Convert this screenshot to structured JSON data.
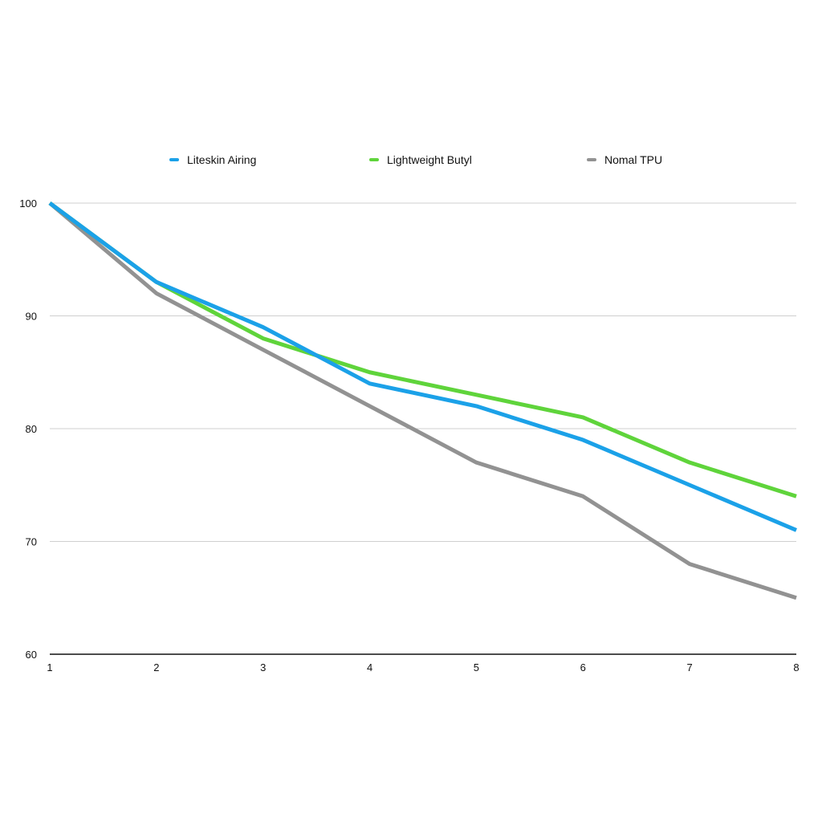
{
  "colors": {
    "series_1": "#1ba1e8",
    "series_2": "#5fd43b",
    "series_3": "#929292",
    "gridline": "#cfcfcf",
    "axis": "#111111"
  },
  "chart_data": {
    "type": "line",
    "title": "",
    "xlabel": "",
    "ylabel": "",
    "x": [
      1,
      2,
      3,
      4,
      5,
      6,
      7,
      8
    ],
    "x_tick_labels": [
      "1",
      "2",
      "3",
      "4",
      "5",
      "6",
      "7",
      "8"
    ],
    "y_tick_labels": [
      "60",
      "70",
      "80",
      "90",
      "100"
    ],
    "y_ticks": [
      60,
      70,
      80,
      90,
      100
    ],
    "ylim": [
      60,
      100
    ],
    "xlim": [
      1,
      8
    ],
    "grid": "horizontal",
    "legend_position": "top",
    "series": [
      {
        "name": "Liteskin Airing",
        "color": "#1ba1e8",
        "values": [
          100,
          93,
          89,
          84,
          82,
          79,
          75,
          71
        ]
      },
      {
        "name": "Lightweight Butyl",
        "color": "#5fd43b",
        "values": [
          100,
          93,
          88,
          85,
          83,
          81,
          77,
          74
        ]
      },
      {
        "name": "Nomal TPU",
        "color": "#929292",
        "values": [
          100,
          92,
          87,
          82,
          77,
          74,
          68,
          65
        ]
      }
    ]
  }
}
